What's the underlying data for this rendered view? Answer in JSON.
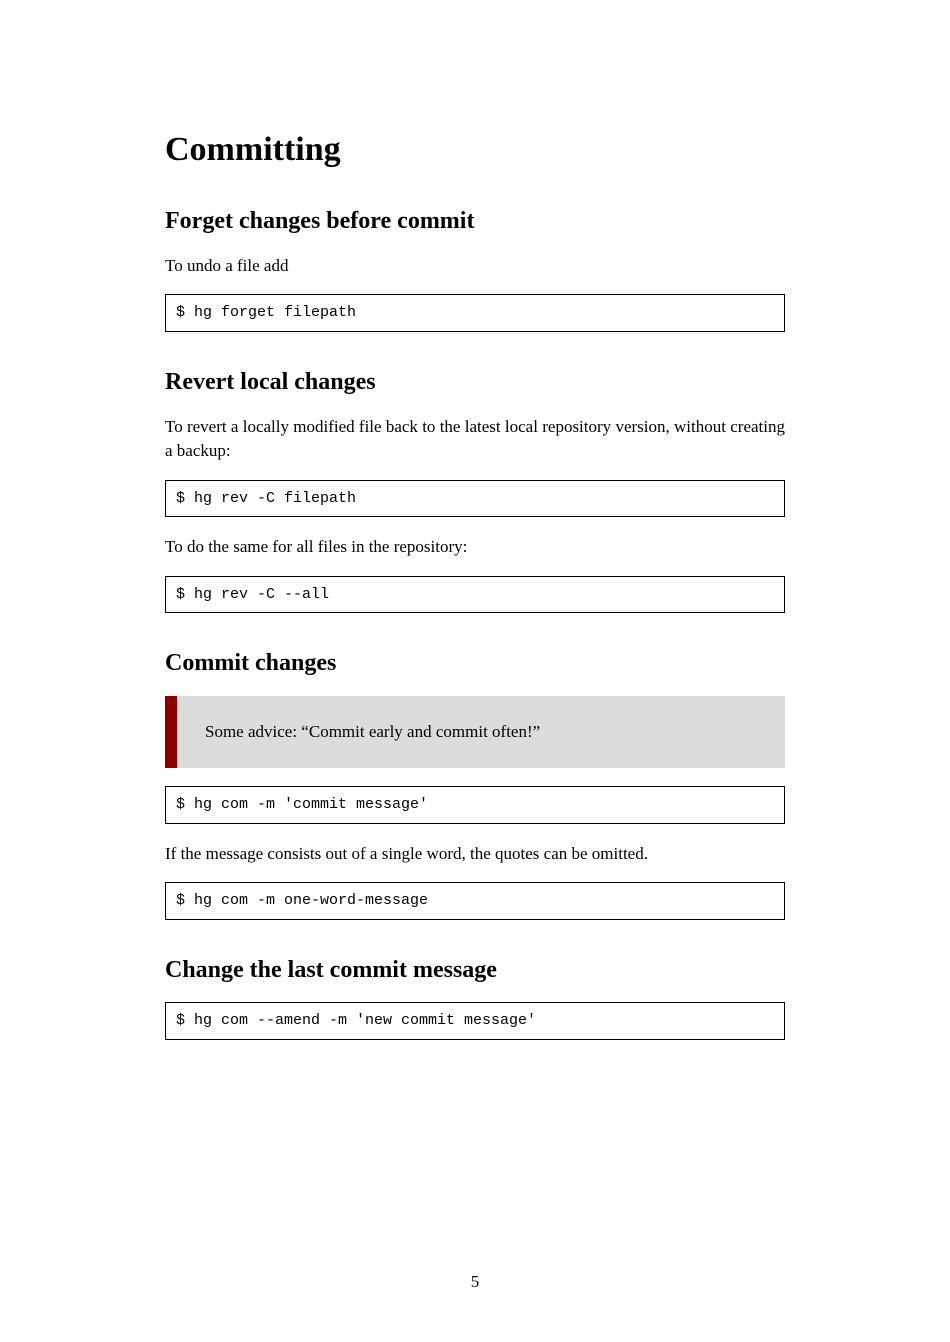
{
  "title": "Committing",
  "sections": [
    {
      "heading": "Forget changes before commit",
      "items": [
        {
          "type": "para",
          "text": "To undo a file add"
        },
        {
          "type": "code",
          "text": "$ hg forget filepath"
        }
      ]
    },
    {
      "heading": "Revert local changes",
      "items": [
        {
          "type": "para",
          "text": "To revert a locally modified file back to the latest local repository version, without creating a backup:"
        },
        {
          "type": "code",
          "text": "$ hg rev -C filepath"
        },
        {
          "type": "para",
          "text": "To do the same for all files in the repository:"
        },
        {
          "type": "code",
          "text": "$ hg rev -C --all"
        }
      ]
    },
    {
      "heading": "Commit changes",
      "items": [
        {
          "type": "callout",
          "text": "Some advice: “Commit early and commit often!”"
        },
        {
          "type": "code",
          "text": "$ hg com -m 'commit message'"
        },
        {
          "type": "para",
          "text": "If the message consists out of a single word, the quotes can be omitted."
        },
        {
          "type": "code",
          "text": "$ hg com -m one-word-message"
        }
      ]
    },
    {
      "heading": "Change the last commit message",
      "items": [
        {
          "type": "code",
          "text": "$ hg com --amend -m 'new commit message'"
        }
      ]
    }
  ],
  "page_number": "5",
  "colors": {
    "callout_bg": "#dcdcdc",
    "callout_bar": "#8b0000",
    "border": "#000000",
    "text": "#000000",
    "bg": "#ffffff"
  }
}
